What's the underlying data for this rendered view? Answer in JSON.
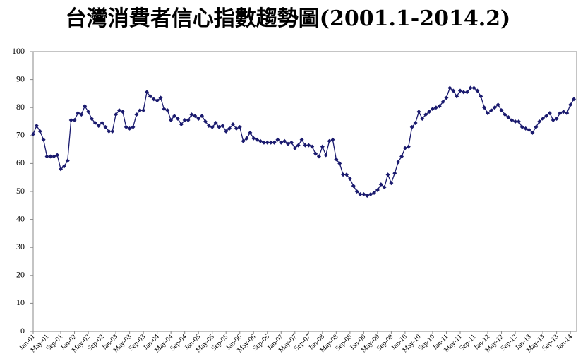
{
  "chart_data": {
    "type": "line",
    "title": "台灣消費者信心指數趨勢圖(2001.1-2014.2)",
    "categories": [
      "Jan-01",
      null,
      null,
      null,
      "May-01",
      null,
      null,
      null,
      "Sep-01",
      null,
      null,
      null,
      "Jan-02",
      null,
      null,
      null,
      "May-02",
      null,
      null,
      null,
      "Sep-02",
      null,
      null,
      null,
      "Jan-03",
      null,
      null,
      null,
      "May-03",
      null,
      null,
      null,
      "Sep-03",
      null,
      null,
      null,
      "Jan-04",
      null,
      null,
      null,
      "May-04",
      null,
      null,
      null,
      "Sep-04",
      null,
      null,
      null,
      "Jan-05",
      null,
      null,
      null,
      "May-05",
      null,
      null,
      null,
      "Sep-05",
      null,
      null,
      null,
      "Jan-06",
      null,
      null,
      null,
      "May-06",
      null,
      null,
      null,
      "Sep-06",
      null,
      null,
      null,
      "Jan-07",
      null,
      null,
      null,
      "May-07",
      null,
      null,
      null,
      "Sep-07",
      null,
      null,
      null,
      "Jan-08",
      null,
      null,
      null,
      "May-08",
      null,
      null,
      null,
      "Sep-08",
      null,
      null,
      null,
      "Jan-09",
      null,
      null,
      null,
      "May-09",
      null,
      null,
      null,
      "Sep-09",
      null,
      null,
      null,
      "Jan-10",
      null,
      null,
      null,
      "May-10",
      null,
      null,
      null,
      "Sep-10",
      null,
      null,
      null,
      "Jan-11",
      null,
      null,
      null,
      "May-11",
      null,
      null,
      null,
      "Sep-11",
      null,
      null,
      null,
      "Jan-12",
      null,
      null,
      null,
      "May-12",
      null,
      null,
      null,
      "Sep-12",
      null,
      null,
      null,
      "Jan-13",
      null,
      null,
      null,
      "May-13",
      null,
      null,
      null,
      "Sep-13",
      null,
      null,
      null,
      "Jan-14",
      null
    ],
    "series": [
      {
        "color": "#1a1a6e",
        "values": [
          70.5,
          73.5,
          71.5,
          68.5,
          62.5,
          62.5,
          62.5,
          63,
          58,
          59,
          61,
          75.5,
          75.5,
          78,
          77.5,
          80.5,
          78.5,
          76,
          74.5,
          73.5,
          74.5,
          73,
          71.5,
          71.5,
          77.5,
          79,
          78.5,
          73,
          72.5,
          73,
          77.5,
          79,
          79,
          85.5,
          84,
          83,
          82.5,
          83.5,
          79.5,
          79,
          75.5,
          77,
          76,
          74,
          75.5,
          75.5,
          77.5,
          77,
          76,
          77,
          75,
          73.5,
          73,
          74.5,
          73,
          73.5,
          71.5,
          72.5,
          74,
          72.5,
          73,
          68,
          69,
          71,
          69,
          68.5,
          68,
          67.5,
          67.5,
          67.5,
          67.5,
          68.5,
          67.5,
          68,
          67,
          67.5,
          65.5,
          66.5,
          68.5,
          66.5,
          66.5,
          66,
          63.5,
          62.5,
          66,
          63,
          68,
          68.5,
          61.5,
          60,
          56,
          56,
          54.5,
          52,
          50,
          49,
          49,
          48.5,
          49,
          49.5,
          50.5,
          52.5,
          51.5,
          56,
          53,
          56.5,
          60.5,
          62.5,
          65.5,
          66,
          73,
          74.5,
          78.5,
          76,
          77.5,
          78.5,
          79.5,
          80,
          80.5,
          82,
          83.5,
          87,
          86,
          84,
          86,
          85.5,
          85.5,
          87,
          87,
          86,
          84,
          80,
          78,
          79,
          80,
          81,
          79,
          77.5,
          76.5,
          75.5,
          75,
          75,
          73,
          72.5,
          72,
          71,
          73,
          75,
          76,
          77,
          78,
          75.5,
          76,
          78,
          78.5,
          78,
          81,
          83
        ]
      }
    ],
    "ylim": [
      0,
      100
    ],
    "yticks": [
      0,
      10,
      20,
      30,
      40,
      50,
      60,
      70,
      80,
      90,
      100
    ]
  }
}
